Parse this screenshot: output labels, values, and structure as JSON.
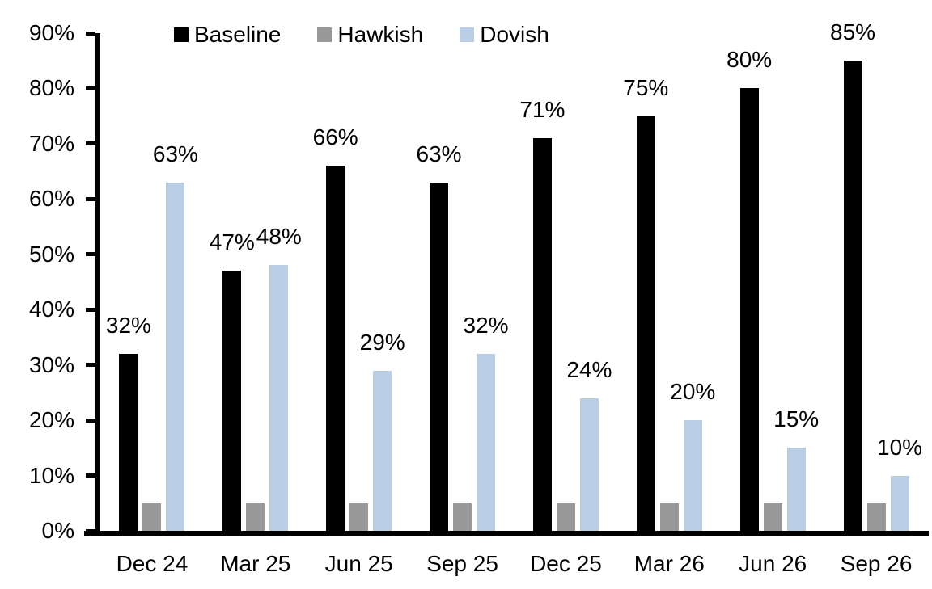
{
  "chart_data": {
    "type": "bar",
    "title": "",
    "xlabel": "",
    "ylabel": "",
    "grid": false,
    "legend_position": "top",
    "categories": [
      "Dec 24",
      "Mar 25",
      "Jun 25",
      "Sep 25",
      "Dec 25",
      "Mar 26",
      "Jun 26",
      "Sep 26"
    ],
    "series": [
      {
        "name": "Baseline",
        "color": "#000000",
        "values": [
          32,
          47,
          66,
          63,
          71,
          75,
          80,
          85
        ],
        "labels": [
          "32%",
          "47%",
          "66%",
          "63%",
          "71%",
          "75%",
          "80%",
          "85%"
        ]
      },
      {
        "name": "Hawkish",
        "color": "#999999",
        "values": [
          5,
          5,
          5,
          5,
          5,
          5,
          5,
          5
        ],
        "labels": [
          "",
          "",
          "",
          "",
          "",
          "",
          "",
          ""
        ]
      },
      {
        "name": "Dovish",
        "color": "#B9CDE4",
        "values": [
          63,
          48,
          29,
          32,
          24,
          20,
          15,
          10
        ],
        "labels": [
          "63%",
          "48%",
          "29%",
          "32%",
          "24%",
          "20%",
          "15%",
          "10%"
        ]
      }
    ],
    "y_axis": {
      "min": 0,
      "max": 90,
      "tick_step": 10,
      "tick_labels": [
        "0%",
        "10%",
        "20%",
        "30%",
        "40%",
        "50%",
        "60%",
        "70%",
        "80%",
        "90%"
      ]
    },
    "legend": [
      "Baseline",
      "Hawkish",
      "Dovish"
    ],
    "axis_color": "#000000",
    "background_color": "#ffffff"
  }
}
